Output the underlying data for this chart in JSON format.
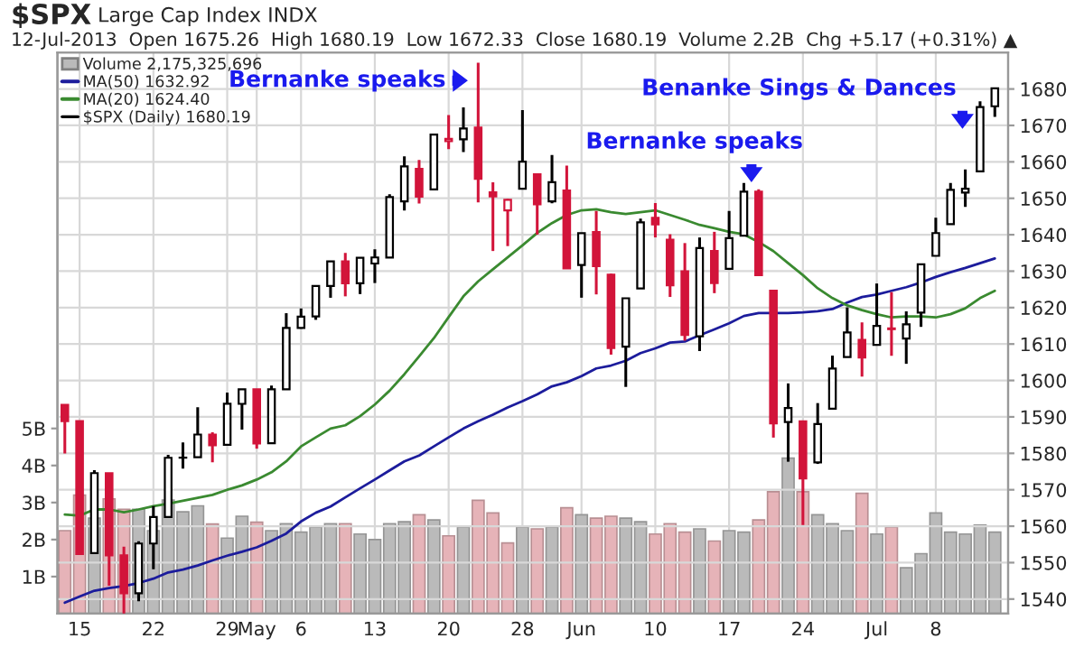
{
  "chart_data": {
    "type": "candlestick",
    "title": "$SPX",
    "subtitle": "Large Cap Index INDX",
    "annotations": [
      "12-Jul-2013  Open 1675.26  High 1680.19  Low 1672.33  Close 1680.19  Volume 2.2B  Chg +5.17 (+0.31%) ▲",
      "Bernanke speaks",
      "Bernanke speaks",
      "Benanke Sings & Dances"
    ],
    "categories": [
      null,
      "15",
      null,
      null,
      null,
      null,
      "22",
      null,
      null,
      null,
      null,
      "29",
      null,
      "May",
      null,
      null,
      "6",
      null,
      null,
      null,
      null,
      "13",
      null,
      null,
      null,
      null,
      "20",
      null,
      null,
      null,
      null,
      "28",
      null,
      null,
      null,
      "Jun",
      null,
      null,
      null,
      null,
      "10",
      null,
      null,
      null,
      null,
      "17",
      null,
      null,
      null,
      null,
      "24",
      null,
      null,
      null,
      null,
      "Jul",
      null,
      null,
      null,
      "8",
      null,
      null,
      null,
      null
    ],
    "series": [
      {
        "type": "bar",
        "name": "Volume 2,175,325,696",
        "axis": "y2",
        "colors": [
          "#e6b3b8",
          "#e6b3b8",
          "#bababa",
          "#e6b3b8",
          "#e6b3b8",
          "#bababa",
          "#bababa",
          "#bababa",
          "#bababa",
          "#bababa",
          "#e6b3b8",
          "#bababa",
          "#bababa",
          "#e6b3b8",
          "#bababa",
          "#bababa",
          "#bababa",
          "#bababa",
          "#bababa",
          "#e6b3b8",
          "#bababa",
          "#bababa",
          "#bababa",
          "#bababa",
          "#e6b3b8",
          "#bababa",
          "#e6b3b8",
          "#bababa",
          "#e6b3b8",
          "#e6b3b8",
          "#e6b3b8",
          "#bababa",
          "#e6b3b8",
          "#bababa",
          "#e6b3b8",
          "#bababa",
          "#e6b3b8",
          "#e6b3b8",
          "#bababa",
          "#bababa",
          "#e6b3b8",
          "#e6b3b8",
          "#e6b3b8",
          "#bababa",
          "#e6b3b8",
          "#bababa",
          "#bababa",
          "#e6b3b8",
          "#e6b3b8",
          "#bababa",
          "#e6b3b8",
          "#bababa",
          "#bababa",
          "#bababa",
          "#e6b3b8",
          "#bababa",
          "#e6b3b8",
          "#bababa",
          "#bababa",
          "#bababa",
          "#bababa",
          "#bababa",
          "#bababa",
          "#bababa"
        ],
        "values": [
          2.24,
          3.2,
          2.58,
          3.1,
          2.82,
          2.82,
          2.24,
          3.07,
          2.75,
          2.91,
          2.42,
          2.04,
          2.63,
          2.47,
          2.24,
          2.43,
          2.2,
          2.34,
          2.43,
          2.43,
          2.15,
          2.0,
          2.43,
          2.48,
          2.67,
          2.53,
          2.1,
          2.34,
          3.06,
          2.72,
          1.91,
          2.34,
          2.29,
          2.34,
          2.86,
          2.67,
          2.58,
          2.63,
          2.58,
          2.48,
          2.15,
          2.43,
          2.2,
          2.29,
          1.96,
          2.24,
          2.2,
          2.53,
          3.29,
          4.2,
          3.29,
          2.67,
          2.43,
          2.24,
          3.25,
          2.15,
          2.34,
          1.24,
          1.62,
          2.72,
          2.2,
          2.15,
          2.39,
          2.2
        ]
      },
      {
        "type": "line",
        "name": "MA(50) 1632.92",
        "color": "#1c1c9c",
        "values": [
          1539,
          1540.7,
          1542.3,
          1543,
          1543.6,
          1544.4,
          1545.6,
          1547.3,
          1548.1,
          1549.2,
          1550.6,
          1551.9,
          1553,
          1554.2,
          1556,
          1558,
          1561.3,
          1563.7,
          1565.4,
          1567.9,
          1570.4,
          1572.8,
          1575.3,
          1577.8,
          1579.4,
          1581.9,
          1584.4,
          1586.8,
          1588.8,
          1590.6,
          1592.6,
          1594.3,
          1596.2,
          1598.4,
          1599.5,
          1601.2,
          1603.3,
          1604.1,
          1605.4,
          1607.5,
          1608.8,
          1610.4,
          1610.7,
          1612.4,
          1614,
          1615.7,
          1617.7,
          1618.5,
          1618.5,
          1618.5,
          1618.7,
          1619,
          1619.6,
          1621.4,
          1622.9,
          1623.6,
          1624.6,
          1625.6,
          1626.9,
          1628.4,
          1629.7,
          1630.9,
          1632.2,
          1633.5
        ]
      },
      {
        "type": "line",
        "name": "MA(20) 1624.40",
        "color": "#3a8a30",
        "values": [
          1563.2,
          1562.9,
          1564.6,
          1564.6,
          1563.8,
          1564.6,
          1565.5,
          1566.2,
          1567,
          1567.8,
          1568.6,
          1570,
          1571.2,
          1572.8,
          1574.8,
          1577.8,
          1581.9,
          1584.4,
          1586.8,
          1587.7,
          1590.2,
          1593.4,
          1597.2,
          1601.7,
          1606.6,
          1611.6,
          1617.4,
          1623.1,
          1627.2,
          1630.5,
          1633.8,
          1637.1,
          1640.5,
          1643.2,
          1645.4,
          1646.7,
          1647,
          1646.2,
          1645.7,
          1646.2,
          1646.7,
          1645.4,
          1644.1,
          1642.7,
          1641.8,
          1640.8,
          1640.1,
          1638,
          1635.5,
          1632.2,
          1628.9,
          1625.3,
          1622.6,
          1620.6,
          1619.3,
          1618.2,
          1617.3,
          1617.6,
          1617.6,
          1617.3,
          1618.2,
          1619.8,
          1622.6,
          1624.6
        ]
      },
      {
        "name": "$SPX (Daily) 1680.19",
        "colors": [
          "#d2143a",
          "#d2143a",
          "#000000",
          "#d2143a",
          "#d2143a",
          "#000000",
          "#000000",
          "#000000",
          "#000000",
          "#000000",
          "#d2143a",
          "#000000",
          "#000000",
          "#d2143a",
          "#000000",
          "#000000",
          "#000000",
          "#000000",
          "#000000",
          "#d2143a",
          "#000000",
          "#000000",
          "#000000",
          "#000000",
          "#d2143a",
          "#000000",
          "#d2143a",
          "#000000",
          "#d2143a",
          "#d2143a",
          "#d2143a",
          "#000000",
          "#d2143a",
          "#000000",
          "#d2143a",
          "#000000",
          "#d2143a",
          "#d2143a",
          "#000000",
          "#000000",
          "#d2143a",
          "#d2143a",
          "#d2143a",
          "#000000",
          "#d2143a",
          "#000000",
          "#000000",
          "#d2143a",
          "#d2143a",
          "#000000",
          "#d2143a",
          "#000000",
          "#000000",
          "#000000",
          "#d2143a",
          "#000000",
          "#d2143a",
          "#000000",
          "#000000",
          "#000000",
          "#000000",
          "#000000",
          "#000000",
          "#000000"
        ],
        "ohlc": [
          [
            1593.3,
            1593.3,
            1579.97,
            1588.85
          ],
          [
            1588.84,
            1588.84,
            1552.28,
            1552.36
          ],
          [
            1552.6,
            1575.35,
            1552.6,
            1574.57
          ],
          [
            1574.57,
            1574.57,
            1543.69,
            1552.01
          ],
          [
            1552.03,
            1554.38,
            1536.03,
            1541.61
          ],
          [
            1541.61,
            1555.89,
            1539.4,
            1555.25
          ],
          [
            1555.25,
            1565.55,
            1548.19,
            1562.5
          ],
          [
            1562.5,
            1579.58,
            1562.5,
            1578.78
          ],
          [
            1578.78,
            1583,
            1575.8,
            1578.79
          ],
          [
            1578.93,
            1592.64,
            1578.93,
            1585.16
          ],
          [
            1585.16,
            1585.78,
            1577.56,
            1582.24
          ],
          [
            1582.34,
            1596.65,
            1582.34,
            1593.61
          ],
          [
            1593.58,
            1597.57,
            1586.5,
            1597.57
          ],
          [
            1597.55,
            1597.55,
            1581.28,
            1582.7
          ],
          [
            1582.77,
            1598.6,
            1582.77,
            1597.59
          ],
          [
            1597.6,
            1618.46,
            1597.6,
            1614.42
          ],
          [
            1614.4,
            1619.77,
            1614.21,
            1617.5
          ],
          [
            1617.55,
            1626.03,
            1616.64,
            1625.96
          ],
          [
            1625.95,
            1632.78,
            1622.7,
            1632.69
          ],
          [
            1632.69,
            1635.01,
            1623.09,
            1626.67
          ],
          [
            1626.69,
            1633.7,
            1623.71,
            1633.7
          ],
          [
            1632.1,
            1636,
            1626.74,
            1633.77
          ],
          [
            1633.75,
            1651.1,
            1633.75,
            1650.34
          ],
          [
            1649.13,
            1661.49,
            1646.68,
            1658.78
          ],
          [
            1658.07,
            1660.51,
            1648.6,
            1650.47
          ],
          [
            1652.45,
            1667.47,
            1652.45,
            1667.47
          ],
          [
            1665.71,
            1672.84,
            1663.52,
            1666.29
          ],
          [
            1666.2,
            1674.93,
            1662.67,
            1669.16
          ],
          [
            1669.39,
            1687.18,
            1648.86,
            1655.35
          ],
          [
            1651.62,
            1654.4,
            1635.53,
            1650.51
          ],
          [
            1646.67,
            1649.78,
            1636.88,
            1649.6
          ],
          [
            1652.63,
            1674.21,
            1652.63,
            1660.06
          ],
          [
            1656.57,
            1656.57,
            1640.05,
            1648.36
          ],
          [
            1649.14,
            1661.91,
            1648.61,
            1654.41
          ],
          [
            1652.13,
            1658.99,
            1630.74,
            1630.74
          ],
          [
            1631.71,
            1640.42,
            1622.72,
            1640.42
          ],
          [
            1640.73,
            1646.53,
            1623.62,
            1631.38
          ],
          [
            1629.05,
            1629.31,
            1607.09,
            1608.9
          ],
          [
            1609.29,
            1622.56,
            1598.23,
            1622.56
          ],
          [
            1625.27,
            1644.4,
            1625.27,
            1643.38
          ],
          [
            1644.67,
            1648.69,
            1639.26,
            1642.81
          ],
          [
            1638.64,
            1640.13,
            1622.92,
            1626.13
          ],
          [
            1629.94,
            1637.71,
            1610.92,
            1612.52
          ],
          [
            1612.15,
            1639.25,
            1608.07,
            1636.36
          ],
          [
            1635.52,
            1640.8,
            1623.96,
            1626.73
          ],
          [
            1630.64,
            1646.5,
            1630.34,
            1639.04
          ],
          [
            1639.77,
            1654.19,
            1639.77,
            1651.81
          ],
          [
            1651.83,
            1652.45,
            1628.91,
            1628.93
          ],
          [
            1624.62,
            1624.62,
            1584.32,
            1588.19
          ],
          [
            1588.62,
            1599.19,
            1577.7,
            1592.43
          ],
          [
            1588.77,
            1588.77,
            1560.33,
            1573.09
          ],
          [
            1577.52,
            1593.79,
            1577.09,
            1588.03
          ],
          [
            1592.27,
            1606.83,
            1592.27,
            1603.26
          ],
          [
            1606.44,
            1620.07,
            1606.44,
            1613.2
          ],
          [
            1611.12,
            1615.94,
            1601.06,
            1606.28
          ],
          [
            1609.78,
            1626.61,
            1609.78,
            1614.96
          ],
          [
            1614.29,
            1624.26,
            1606.77,
            1614.08
          ],
          [
            1611.48,
            1618.97,
            1604.57,
            1615.41
          ],
          [
            1618.65,
            1632.07,
            1614.71,
            1631.89
          ],
          [
            1634.2,
            1644.68,
            1634.2,
            1640.46
          ],
          [
            1642.89,
            1654.18,
            1642.89,
            1652.32
          ],
          [
            1651.56,
            1657.92,
            1647.66,
            1652.62
          ],
          [
            1657.41,
            1676.63,
            1657.41,
            1675.02
          ],
          [
            1675.26,
            1680.19,
            1672.33,
            1680.19
          ]
        ]
      }
    ],
    "ylim": [
      1536,
      1690
    ],
    "yticks": [
      1540,
      1550,
      1560,
      1570,
      1580,
      1590,
      1600,
      1610,
      1620,
      1630,
      1640,
      1650,
      1660,
      1670,
      1680
    ],
    "y2lim": [
      0,
      15.15
    ],
    "y2ticks": [
      {
        "value": 1,
        "label": "1B"
      },
      {
        "value": 2,
        "label": "2B"
      },
      {
        "value": 3,
        "label": "3B"
      },
      {
        "value": 4,
        "label": "4B"
      },
      {
        "value": 5,
        "label": "5B"
      }
    ],
    "grid": true,
    "legend": "top left"
  }
}
